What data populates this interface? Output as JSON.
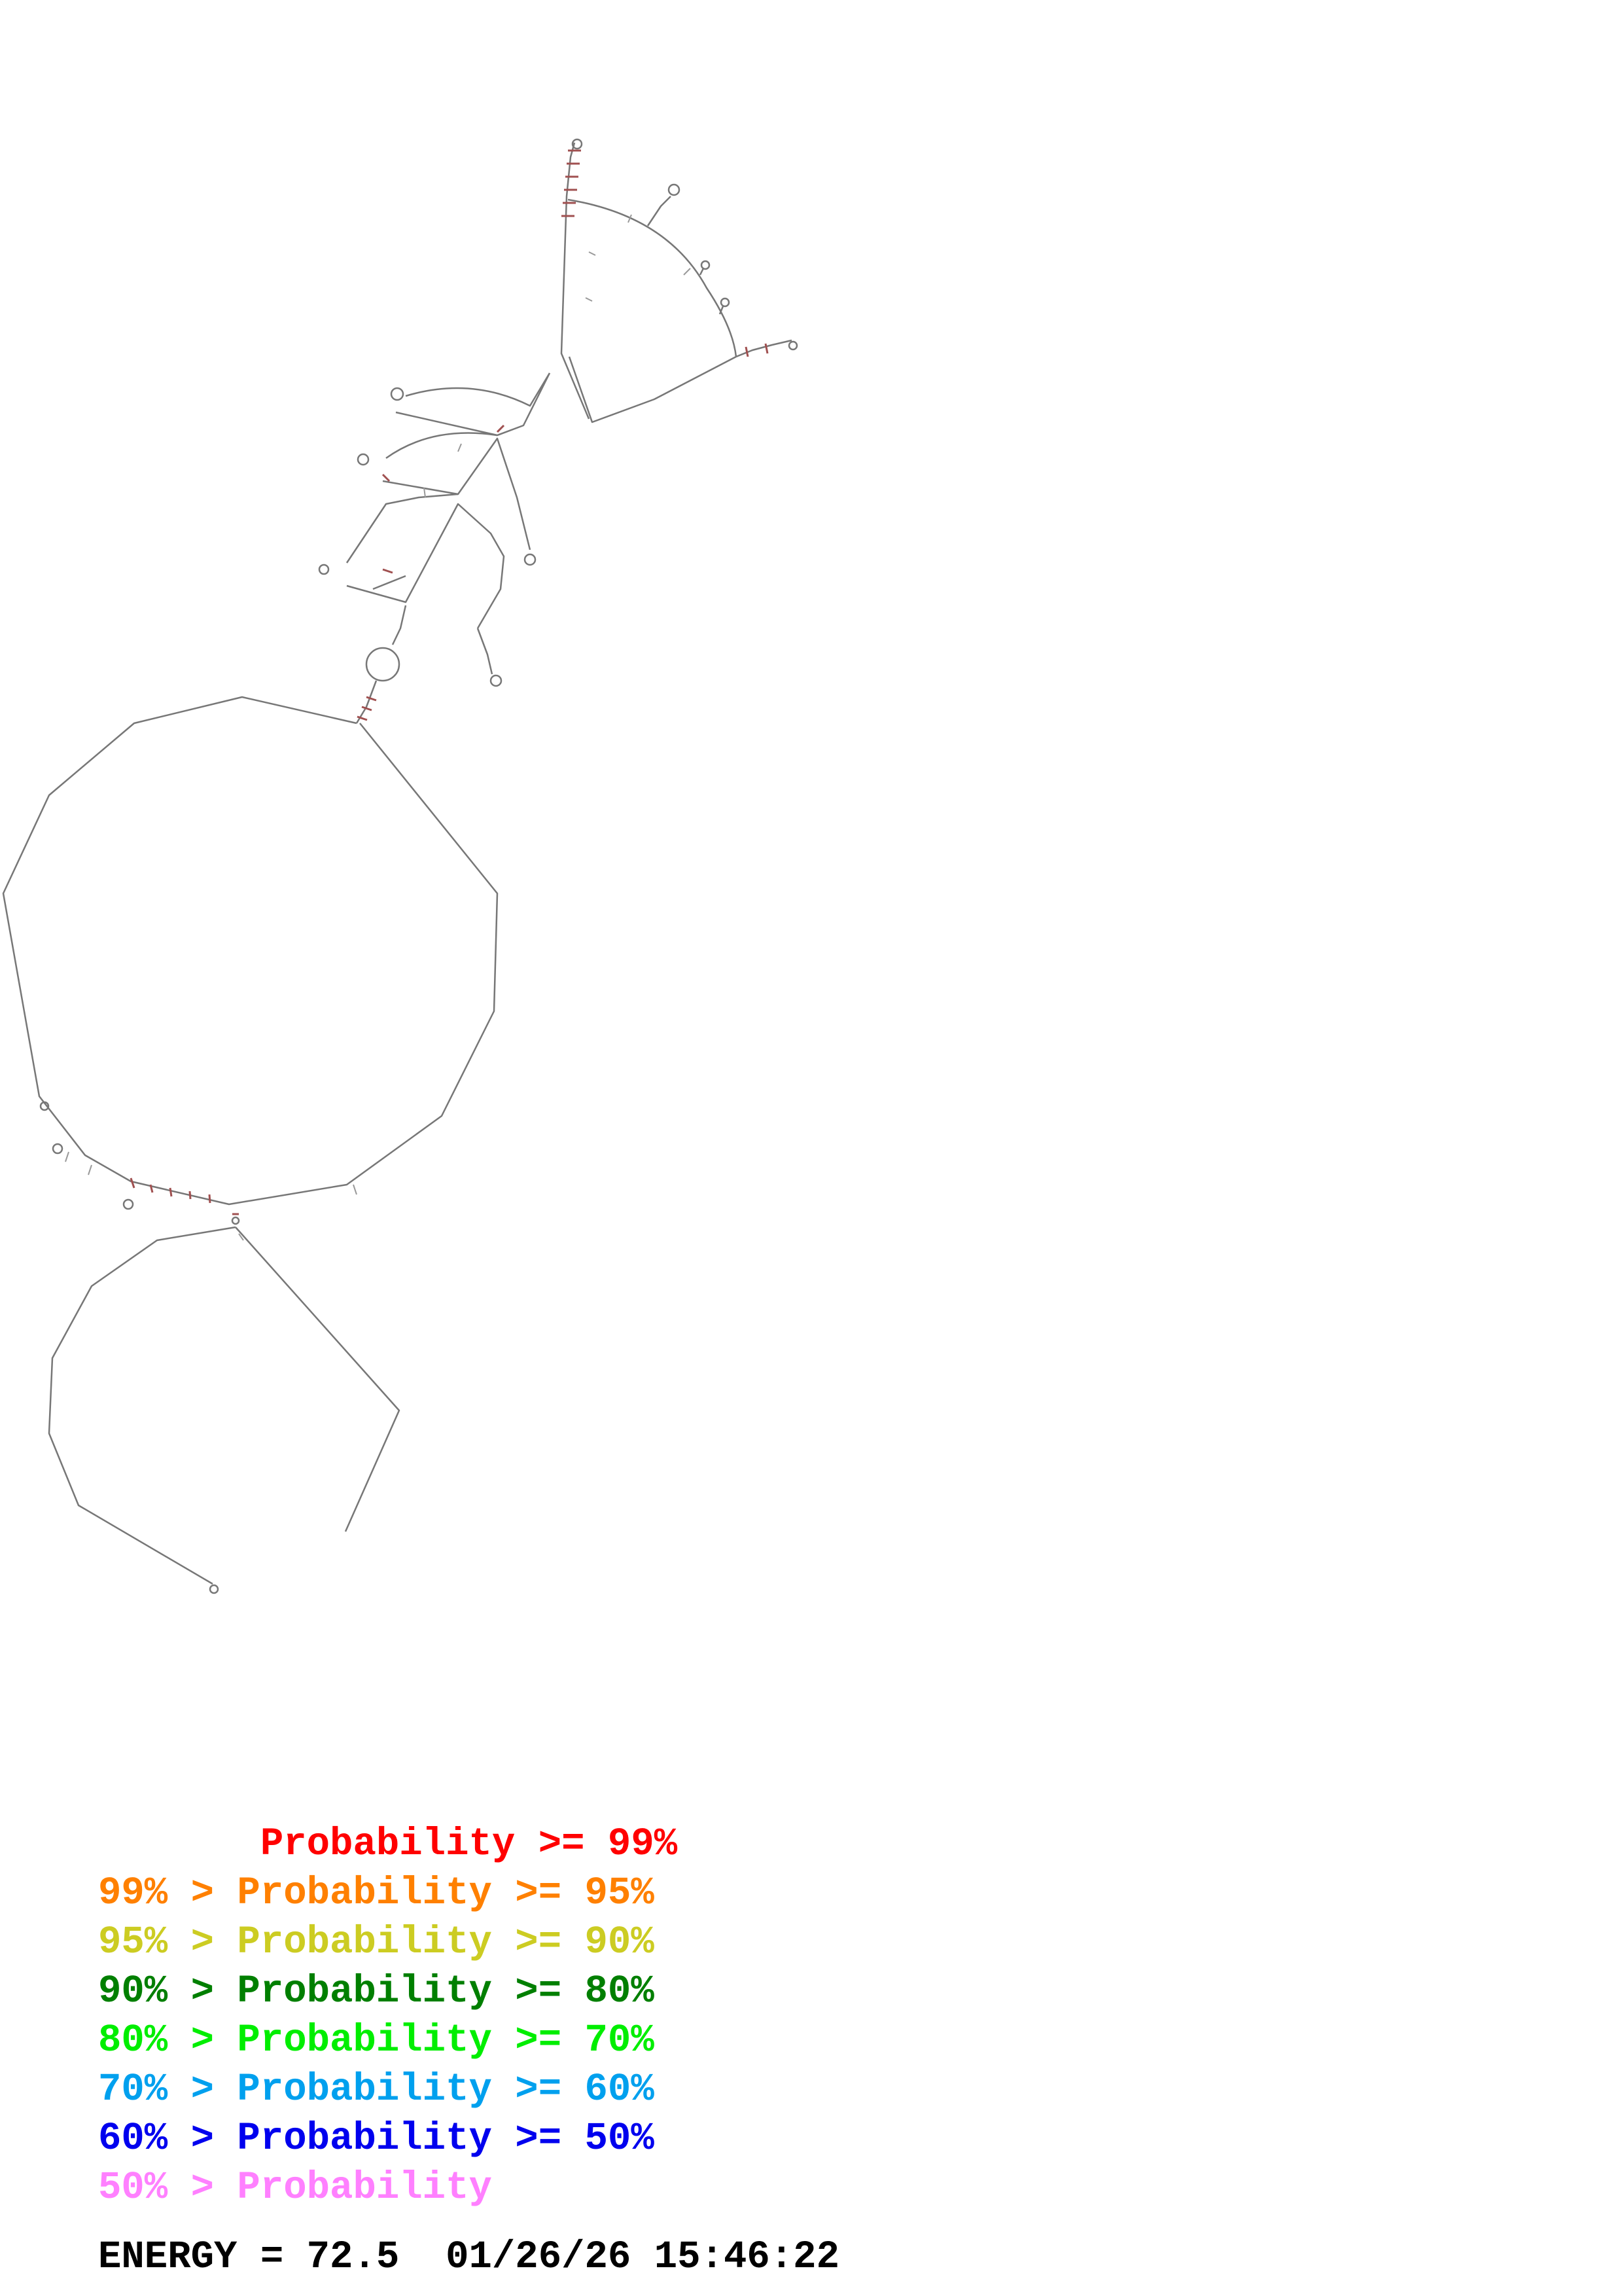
{
  "legend": {
    "items": [
      {
        "text": "       Probability >= 99%",
        "color": "#ff0000"
      },
      {
        "text": "99% > Probability >= 95%",
        "color": "#ff8000"
      },
      {
        "text": "95% > Probability >= 90%",
        "color": "#cccc22"
      },
      {
        "text": "90% > Probability >= 80%",
        "color": "#007f00"
      },
      {
        "text": "80% > Probability >= 70%",
        "color": "#00ee00"
      },
      {
        "text": "70% > Probability >= 60%",
        "color": "#00a0ee"
      },
      {
        "text": "60% > Probability >= 50%",
        "color": "#0000ee"
      },
      {
        "text": "50% > Probability",
        "color": "#ff80ff"
      }
    ]
  },
  "footer": {
    "energy": "ENERGY = 72.5  01/26/26 15:46:22"
  },
  "colors": {
    "backbone": "#777777",
    "pair": "#a05050",
    "tick": "#999999"
  }
}
